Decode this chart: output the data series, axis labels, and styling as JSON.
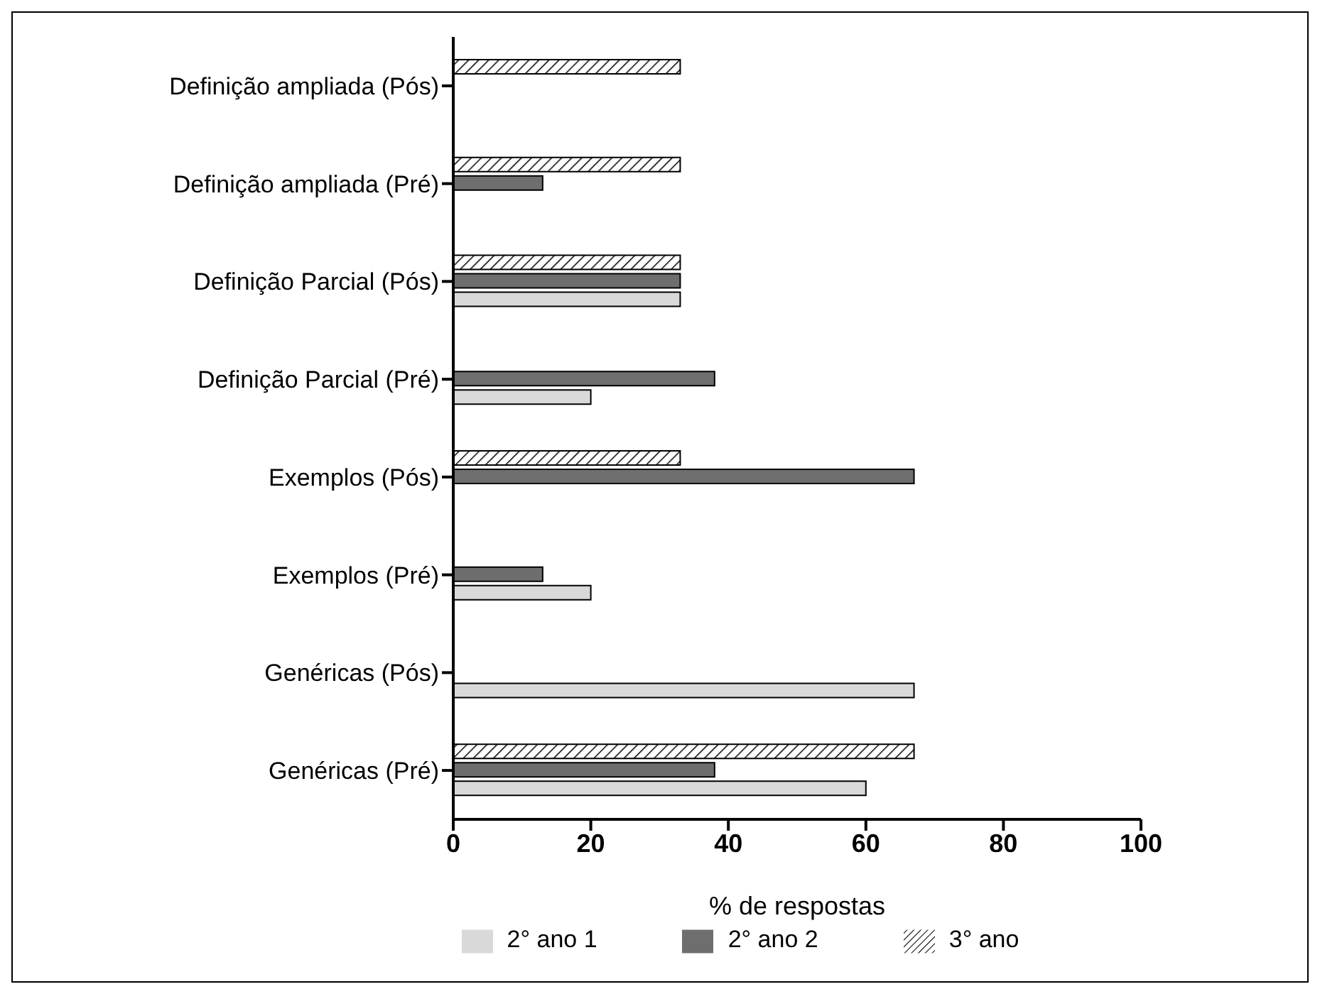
{
  "chart_data": {
    "type": "bar",
    "orientation": "horizontal",
    "xlabel": "% de respostas",
    "categories": [
      "Definição ampliada (Pós)",
      "Definição ampliada (Pré)",
      "Definição Parcial (Pós)",
      "Definição Parcial (Pré)",
      "Exemplos (Pós)",
      "Exemplos (Pré)",
      "Genéricas (Pós)",
      "Genéricas (Pré)"
    ],
    "series": [
      {
        "name": "2° ano 1",
        "color": "#d9d9d9",
        "values": [
          null,
          null,
          33,
          20,
          null,
          20,
          67,
          60
        ]
      },
      {
        "name": "2° ano 2",
        "color": "#6e6e6e",
        "values": [
          null,
          13,
          33,
          38,
          67,
          13,
          null,
          38
        ]
      },
      {
        "name": "3° ano",
        "color": "#000000",
        "values": [
          33,
          33,
          33,
          null,
          33,
          null,
          null,
          67
        ]
      }
    ],
    "xlim": [
      0,
      100
    ],
    "xticks": [
      0,
      20,
      40,
      60,
      80,
      100
    ],
    "legend": "bottom"
  }
}
